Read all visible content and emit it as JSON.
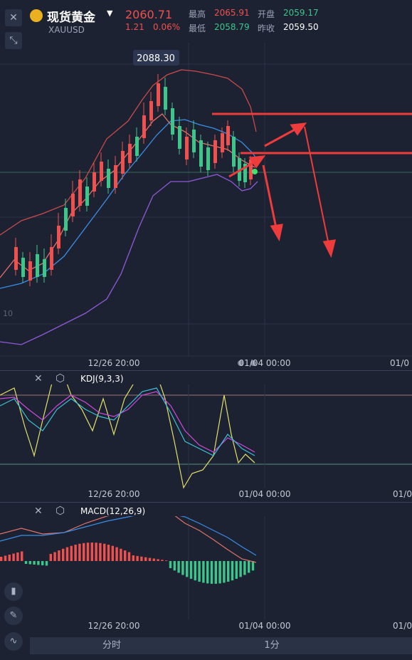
{
  "header": {
    "symbol_name": "现货黄金",
    "symbol_code": "XAUUSD",
    "price": "2060.71",
    "change": "1.21",
    "change_pct": "0.06%",
    "high_label": "最高",
    "high_value": "2065.91",
    "low_label": "最低",
    "low_value": "2058.79",
    "open_label": "开盘",
    "open_value": "2059.17",
    "prev_close_label": "昨收",
    "prev_close_value": "2059.50"
  },
  "main_chart": {
    "peak_label": "2088.30",
    "left_edge_label": "10",
    "x_labels": [
      "12/26 20:00",
      "01/04 00:00",
      "01/0"
    ]
  },
  "kdj": {
    "title": "KDJ(9,3,3)",
    "x_labels": [
      "12/26 20:00",
      "01/04 00:00",
      "01/0"
    ]
  },
  "macd": {
    "title": "MACD(12,26,9)",
    "x_labels": [
      "12/26 20:00",
      "01/04 00:00",
      "01/0"
    ]
  },
  "tabs": [
    "分时",
    "1分"
  ],
  "colors": {
    "up": "#f0514f",
    "down": "#3cc68a",
    "arrow": "#ee3b3b",
    "bg": "#1c2232"
  }
}
